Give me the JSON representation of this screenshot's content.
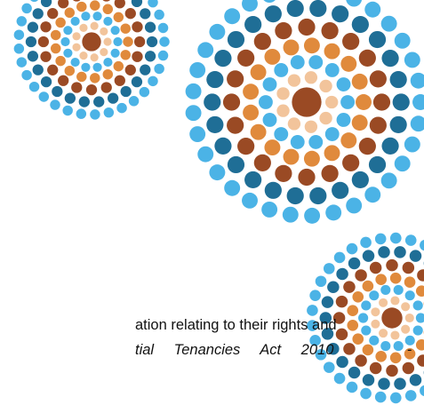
{
  "paragraph": {
    "line_1": "ation relating to their rights and",
    "line_2_italic": "tial Tenancies Act 2010",
    "line_2_dash": "-"
  }
}
